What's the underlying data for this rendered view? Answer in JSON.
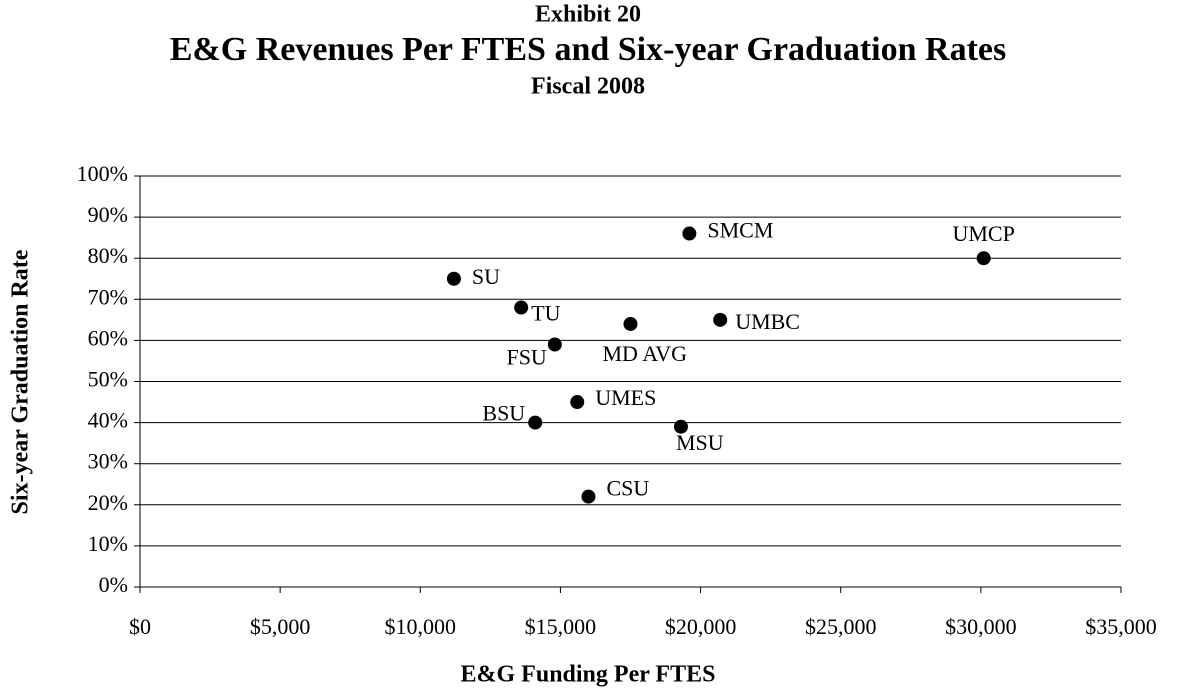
{
  "chart_data": {
    "type": "scatter",
    "supertitle": "Exhibit 20",
    "title": "E&G Revenues Per FTES and Six-year Graduation Rates",
    "subtitle": "Fiscal 2008",
    "xlabel": "E&G Funding Per FTES",
    "ylabel": "Six-year Graduation Rate",
    "labels": [
      "SU",
      "TU",
      "FSU",
      "BSU",
      "UMES",
      "CSU",
      "MD AVG",
      "SMCM",
      "MSU",
      "UMBC",
      "UMCP"
    ],
    "x": [
      11200,
      13600,
      14800,
      14100,
      15600,
      16000,
      17500,
      19600,
      19300,
      20700,
      30100
    ],
    "values": [
      75,
      68,
      59,
      40,
      45,
      22,
      64,
      86,
      39,
      65,
      80
    ],
    "color": "#000000",
    "xlim": [
      0,
      35000
    ],
    "xticks": [
      {
        "value": 0,
        "label": "$0"
      },
      {
        "value": 5000,
        "label": "$5,000"
      },
      {
        "value": 10000,
        "label": "$10,000"
      },
      {
        "value": 15000,
        "label": "$15,000"
      },
      {
        "value": 20000,
        "label": "$20,000"
      },
      {
        "value": 25000,
        "label": "$25,000"
      },
      {
        "value": 30000,
        "label": "$30,000"
      },
      {
        "value": 35000,
        "label": "$35,000"
      }
    ],
    "ylim": [
      0,
      100
    ],
    "yticks": [
      {
        "value": 0,
        "label": "0%"
      },
      {
        "value": 10,
        "label": "10%"
      },
      {
        "value": 20,
        "label": "20%"
      },
      {
        "value": 30,
        "label": "30%"
      },
      {
        "value": 40,
        "label": "40%"
      },
      {
        "value": 50,
        "label": "50%"
      },
      {
        "value": 60,
        "label": "60%"
      },
      {
        "value": 70,
        "label": "70%"
      },
      {
        "value": 80,
        "label": "80%"
      },
      {
        "value": 90,
        "label": "90%"
      },
      {
        "value": 100,
        "label": "100%"
      }
    ],
    "grid": true
  }
}
